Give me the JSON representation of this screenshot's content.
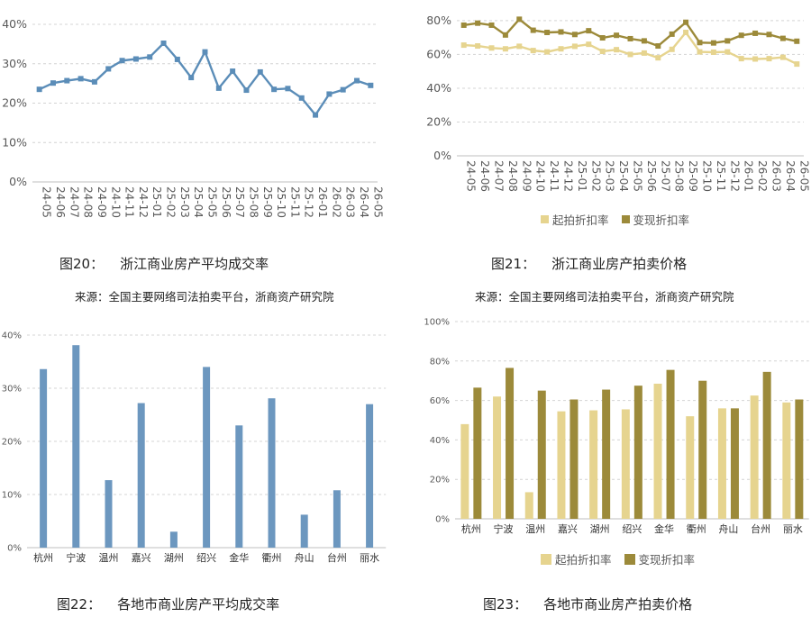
{
  "colors": {
    "blue": "#5b8db8",
    "blue_bar": "#6c97bf",
    "light": "#e6d48f",
    "dark": "#9c8a3a",
    "grid": "#d4d4d4",
    "axis_text": "#595959"
  },
  "captions": {
    "c20_num": "图20：",
    "c20_title": "浙江商业房产平均成交率",
    "c21_num": "图21：",
    "c21_title": "浙江商业房产拍卖价格",
    "c22_num": "图22：",
    "c22_title": "各地市商业房产平均成交率",
    "c23_num": "图23：",
    "c23_title": "各地市商业房产拍卖价格"
  },
  "sources": {
    "s20": "来源：全国主要网络司法拍卖平台，浙商资产研究院",
    "s21": "来源：全国主要网络司法拍卖平台，浙商资产研究院"
  },
  "chart_data": [
    {
      "type": "line",
      "categories": [
        "24-05",
        "24-06",
        "24-07",
        "24-08",
        "24-09",
        "24-10",
        "24-11",
        "24-12",
        "25-01",
        "25-02",
        "25-03",
        "25-04",
        "25-05",
        "25-06",
        "25-07",
        "25-08",
        "25-09",
        "25-10",
        "25-11",
        "25-12",
        "26-01",
        "26-02",
        "26-03",
        "26-04",
        "26-05"
      ],
      "series": [
        {
          "values": [
            23.5,
            25.1,
            25.7,
            26.2,
            25.4,
            28.7,
            30.8,
            31.2,
            31.7,
            35.2,
            31.1,
            26.5,
            33.0,
            23.8,
            28.1,
            23.3,
            27.9,
            23.5,
            23.7,
            21.3,
            17.0,
            22.3,
            23.4,
            25.7,
            24.5
          ]
        }
      ],
      "yticks": [
        "0%",
        "10%",
        "20%",
        "30%",
        "40%"
      ],
      "ylim": [
        0,
        40
      ],
      "grid": true
    },
    {
      "type": "line",
      "categories": [
        "24-05",
        "24-06",
        "24-07",
        "24-08",
        "24-09",
        "24-10",
        "24-11",
        "24-12",
        "25-01",
        "25-02",
        "25-03",
        "25-04",
        "25-05",
        "25-06",
        "25-07",
        "25-08",
        "25-09",
        "25-10",
        "25-11",
        "25-12",
        "26-01",
        "26-02",
        "26-03",
        "26-04",
        "26-05"
      ],
      "series": [
        {
          "name": "起拍折扣率",
          "values": [
            65.5,
            65.0,
            63.8,
            63.3,
            64.8,
            62.3,
            61.5,
            63.3,
            64.8,
            66.0,
            61.8,
            62.8,
            60.0,
            60.8,
            58.0,
            63.0,
            73.0,
            61.5,
            61.3,
            61.5,
            57.5,
            57.3,
            57.5,
            58.3,
            54.3
          ]
        },
        {
          "name": "变现折扣率",
          "values": [
            77.3,
            78.5,
            77.3,
            71.5,
            80.8,
            74.3,
            73.0,
            73.3,
            71.8,
            74.0,
            69.8,
            71.3,
            69.3,
            68.0,
            65.0,
            72.0,
            79.0,
            67.0,
            66.8,
            68.0,
            71.3,
            72.5,
            71.8,
            69.5,
            67.8
          ]
        }
      ],
      "yticks": [
        "0%",
        "20%",
        "40%",
        "60%",
        "80%"
      ],
      "ylim": [
        0,
        85
      ],
      "legend": "bottom",
      "grid": true
    },
    {
      "type": "bar",
      "categories": [
        "杭州",
        "宁波",
        "温州",
        "嘉兴",
        "湖州",
        "绍兴",
        "金华",
        "衢州",
        "舟山",
        "台州",
        "丽水"
      ],
      "series": [
        {
          "values": [
            33.6,
            38.1,
            12.7,
            27.2,
            3.0,
            34.0,
            23.0,
            28.1,
            6.2,
            10.8,
            27.0
          ]
        }
      ],
      "yticks": [
        "0%",
        "10%",
        "20%",
        "30%",
        "40%"
      ],
      "ylim": [
        0,
        40
      ],
      "grid": true
    },
    {
      "type": "bar",
      "categories": [
        "杭州",
        "宁波",
        "温州",
        "嘉兴",
        "湖州",
        "绍兴",
        "金华",
        "衢州",
        "舟山",
        "台州",
        "丽水"
      ],
      "series": [
        {
          "name": "起拍折扣率",
          "values": [
            48.0,
            62.0,
            13.5,
            54.5,
            55.0,
            55.5,
            68.5,
            52.0,
            56.0,
            62.5,
            59.0
          ]
        },
        {
          "name": "变现折扣率",
          "values": [
            66.5,
            76.5,
            65.0,
            60.5,
            65.5,
            67.5,
            75.5,
            70.0,
            56.0,
            74.5,
            60.5
          ]
        }
      ],
      "yticks": [
        "0%",
        "20%",
        "40%",
        "60%",
        "80%",
        "100%"
      ],
      "ylim": [
        0,
        100
      ],
      "legend": "bottom",
      "grid": true
    }
  ]
}
